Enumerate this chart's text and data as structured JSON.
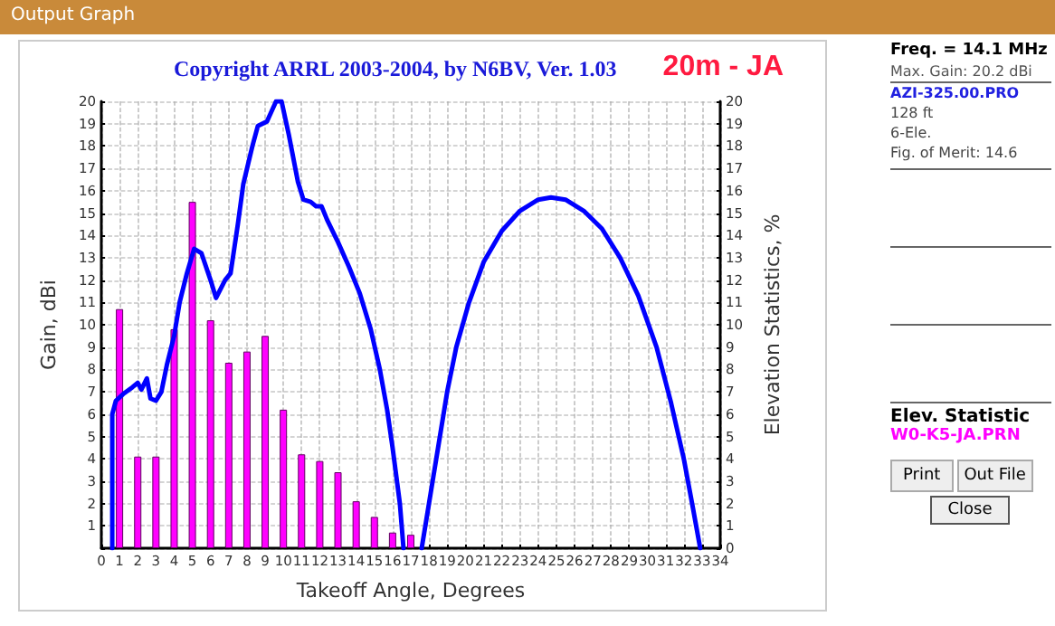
{
  "chart_data": {
    "type": "line",
    "title": "20m - JA",
    "subtitle": "Copyright ARRL 2003-2004, by N6BV, Ver. 1.03",
    "xlabel": "Takeoff Angle, Degrees",
    "ylabel": "Gain, dBi",
    "y2label": "Elevation Statistics, %",
    "annotations": [
      "Output Graph",
      "Freq. = 14.1 MHz",
      "Max. Gain: 20.2 dBi",
      "AZI-325.00.PRO",
      "128 ft",
      "6-Ele.",
      "Fig. of Merit:  14.6",
      "Elev. Statistic",
      "W0-K5-JA.PRN",
      "Print",
      "Out File",
      "Close"
    ],
    "series": [
      {
        "type": "bar",
        "axis": "y2",
        "color": "#ff00ff",
        "x": [
          1,
          2,
          3,
          4,
          5,
          6,
          7,
          8,
          9,
          10,
          11,
          12,
          13,
          14,
          15,
          16,
          17
        ],
        "values": [
          10.7,
          4.1,
          4.1,
          9.8,
          15.5,
          10.2,
          8.3,
          8.8,
          9.5,
          6.2,
          4.2,
          3.9,
          3.4,
          2.1,
          1.4,
          0.7,
          0.6
        ]
      },
      {
        "color": "#0000ff",
        "x": [
          0.6,
          0.6,
          0.8,
          1.2,
          1.7,
          2.0,
          2.2,
          2.5,
          2.7,
          3.0,
          3.3,
          3.6,
          4.0,
          4.3,
          4.7,
          5.1,
          5.5,
          6.0,
          6.3,
          6.8,
          7.1,
          7.5,
          7.8,
          8.3,
          8.6,
          9.1,
          9.6,
          9.9,
          10.3,
          10.8,
          11.1,
          11.5,
          11.8,
          12.1,
          12.4,
          13.0,
          13.6,
          14.2,
          14.8,
          15.3,
          15.7,
          16.0,
          16.4,
          16.6,
          17.0,
          17.6,
          18.2,
          18.6,
          19.0,
          19.5,
          20.2,
          21.0,
          22.0,
          23.0,
          24.0,
          24.7,
          25.5,
          26.5,
          27.5,
          28.5,
          29.5,
          30.5,
          31.3,
          32.0,
          32.5,
          32.9
        ],
        "values": [
          0,
          6.0,
          6.6,
          6.9,
          7.2,
          7.4,
          7.1,
          7.6,
          6.7,
          6.6,
          7.0,
          8.2,
          9.5,
          11.0,
          12.3,
          13.4,
          13.2,
          12.0,
          11.2,
          12.0,
          12.3,
          14.5,
          16.3,
          18.0,
          18.9,
          19.1,
          20,
          20,
          18.5,
          16.4,
          15.6,
          15.5,
          15.3,
          15.3,
          14.7,
          13.7,
          12.6,
          11.4,
          9.8,
          8.0,
          6.2,
          4.5,
          2.0,
          0,
          null,
          0,
          3,
          5,
          7,
          9,
          11,
          12.8,
          14.2,
          15.1,
          15.6,
          15.7,
          15.6,
          15.1,
          14.3,
          13,
          11.3,
          9,
          6.5,
          4,
          1.8,
          0
        ]
      }
    ],
    "xlim": [
      0,
      34
    ],
    "xticks": [
      0,
      1,
      2,
      3,
      4,
      5,
      6,
      7,
      8,
      9,
      10,
      11,
      12,
      13,
      14,
      15,
      16,
      17,
      18,
      19,
      20,
      21,
      22,
      23,
      24,
      25,
      26,
      27,
      28,
      29,
      30,
      31,
      32,
      33,
      34
    ],
    "ylim": [
      0,
      20
    ],
    "yticks": [
      {
        "value": 0,
        "label": null
      },
      1,
      2,
      3,
      4,
      5,
      6,
      7,
      8,
      9,
      10,
      11,
      12,
      13,
      14,
      15,
      16,
      17,
      18,
      19,
      20
    ],
    "y2lim": [
      0,
      20
    ],
    "y2ticks": [
      0,
      1,
      2,
      3,
      4,
      5,
      6,
      7,
      8,
      9,
      10,
      11,
      12,
      13,
      14,
      15,
      16,
      17,
      18,
      19,
      20
    ],
    "grid": true,
    "marker": "none",
    "line_style": "solid"
  }
}
